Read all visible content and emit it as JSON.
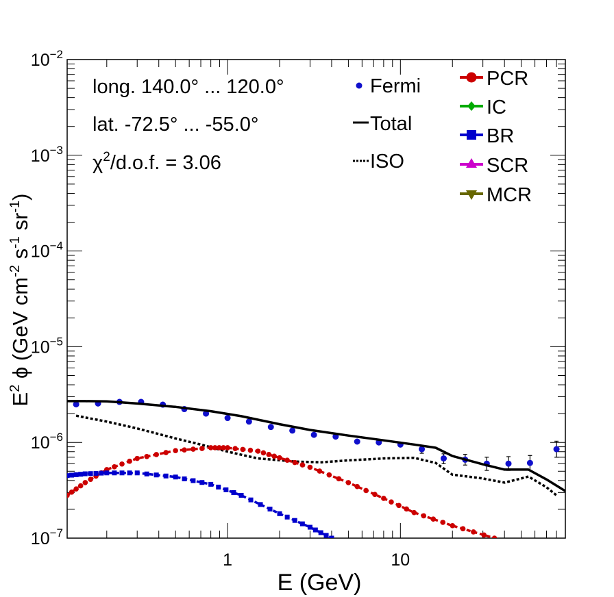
{
  "chart_data": {
    "type": "line",
    "scale": {
      "x": "log",
      "y": "log"
    },
    "xlim": [
      0.118,
      90
    ],
    "ylim": [
      1e-07,
      0.01
    ],
    "xlabel": "E (GeV)",
    "ylabel": {
      "base": "E",
      "sup": "2",
      "phi": " ϕ (GeV cm",
      "cm_exp": "-2",
      "s": " s",
      "s_exp": "-1",
      "sr": " sr",
      "sr_exp": "-1",
      "close": ")"
    },
    "x_ticks": [
      {
        "value": 1,
        "label": "1"
      },
      {
        "value": 10,
        "label": "10"
      }
    ],
    "y_ticks": [
      {
        "value": 1e-07,
        "base": "10",
        "exp": "−7"
      },
      {
        "value": 1e-06,
        "base": "10",
        "exp": "−6"
      },
      {
        "value": 1e-05,
        "base": "10",
        "exp": "−5"
      },
      {
        "value": 0.0001,
        "base": "10",
        "exp": "−4"
      },
      {
        "value": 0.001,
        "base": "10",
        "exp": "−3"
      },
      {
        "value": 0.01,
        "base": "10",
        "exp": "−2"
      }
    ],
    "annotations": {
      "longitude": "long. 140.0° ... 120.0°",
      "latitude": "lat. -72.5° ... -55.0°",
      "chi_symbol": "χ",
      "chi_exp": "2",
      "chi_rest": "/d.o.f. = 3.06"
    },
    "legend": {
      "left": [
        {
          "label": "Fermi",
          "style": "point"
        },
        {
          "label": "Total",
          "style": "solid"
        },
        {
          "label": "ISO",
          "style": "dotted"
        }
      ],
      "right": [
        {
          "label": "PCR",
          "color": "#cc0000",
          "marker": "circle"
        },
        {
          "label": "IC",
          "color": "#00aa00",
          "marker": "diamond"
        },
        {
          "label": "BR",
          "color": "#0000cc",
          "marker": "square"
        },
        {
          "label": "SCR",
          "color": "#cc00cc",
          "marker": "triangle-up"
        },
        {
          "label": "MCR",
          "color": "#666600",
          "marker": "triangle-down"
        }
      ]
    },
    "series": [
      {
        "name": "Fermi",
        "type": "points",
        "color": "#1010cc",
        "x": [
          0.133,
          0.178,
          0.237,
          0.316,
          0.422,
          0.562,
          0.75,
          1.0,
          1.33,
          1.78,
          2.37,
          3.16,
          4.22,
          5.62,
          7.5,
          10.0,
          13.3,
          17.8,
          23.7,
          31.6,
          42.2,
          56.2,
          80.0
        ],
        "y": [
          2.5e-06,
          2.55e-06,
          2.65e-06,
          2.65e-06,
          2.48e-06,
          2.23e-06,
          2e-06,
          1.8e-06,
          1.65e-06,
          1.45e-06,
          1.33e-06,
          1.2e-06,
          1.15e-06,
          1.02e-06,
          1e-06,
          9.5e-07,
          8.5e-07,
          6.8e-07,
          6.6e-07,
          6e-07,
          6e-07,
          6.1e-07,
          8.5e-07
        ],
        "err_low": [
          null,
          null,
          null,
          null,
          null,
          null,
          null,
          null,
          null,
          null,
          null,
          null,
          null,
          null,
          null,
          null,
          7.7e-07,
          6e-07,
          5.8e-07,
          5.1e-07,
          5.1e-07,
          5.1e-07,
          7e-07
        ],
        "err_high": [
          null,
          null,
          null,
          null,
          null,
          null,
          null,
          null,
          null,
          null,
          null,
          null,
          null,
          null,
          null,
          null,
          9.3e-07,
          7.6e-07,
          7.5e-07,
          7e-07,
          7.1e-07,
          7.3e-07,
          1.03e-06
        ]
      },
      {
        "name": "Total",
        "type": "line",
        "style": "solid",
        "color": "#000000",
        "x": [
          0.118,
          0.15,
          0.2,
          0.3,
          0.5,
          0.8,
          1.2,
          2.0,
          3.0,
          5.0,
          8.0,
          12.0,
          16.0,
          20.0,
          30.0,
          40.0,
          55.0,
          70.0,
          90.0
        ],
        "y": [
          2.7e-06,
          2.7e-06,
          2.68e-06,
          2.55e-06,
          2.35e-06,
          2.12e-06,
          1.88e-06,
          1.55e-06,
          1.35e-06,
          1.18e-06,
          1.05e-06,
          9.5e-07,
          8.8e-07,
          7.2e-07,
          5.9e-07,
          5.2e-07,
          5.2e-07,
          4.1e-07,
          3.1e-07
        ]
      },
      {
        "name": "ISO",
        "type": "line",
        "style": "dotted",
        "color": "#000000",
        "x": [
          0.133,
          0.2,
          0.3,
          0.5,
          0.7,
          1.0,
          1.5,
          2.5,
          3.5,
          5.0,
          8.0,
          12.0,
          16.0,
          20.0,
          30.0,
          40.0,
          50.0,
          55.0,
          70.0,
          80.0
        ],
        "y": [
          1.9e-06,
          1.65e-06,
          1.4e-06,
          1.1e-06,
          9.5e-07,
          8e-07,
          6.8e-07,
          6.3e-07,
          6.2e-07,
          6.5e-07,
          6.8e-07,
          6.9e-07,
          6.1e-07,
          4.6e-07,
          4.2e-07,
          3.8e-07,
          4.2e-07,
          4.4e-07,
          3.4e-07,
          2.8e-07
        ]
      },
      {
        "name": "PCR",
        "type": "line",
        "style": "dashed",
        "color": "#cc0000",
        "marker": "circle",
        "x": [
          0.118,
          0.15,
          0.2,
          0.3,
          0.5,
          0.8,
          1.0,
          1.5,
          2.0,
          3.0,
          5.0,
          8.0,
          12.0,
          20.0,
          35.0
        ],
        "y": [
          2.8e-07,
          3.8e-07,
          5.2e-07,
          6.8e-07,
          8.2e-07,
          8.8e-07,
          8.8e-07,
          8.1e-07,
          6.9e-07,
          5.5e-07,
          3.8e-07,
          2.6e-07,
          1.85e-07,
          1.35e-07,
          1e-07
        ]
      },
      {
        "name": "BR",
        "type": "line",
        "style": "dashed",
        "color": "#0000cc",
        "marker": "square",
        "x": [
          0.118,
          0.15,
          0.2,
          0.3,
          0.5,
          0.8,
          1.2,
          2.0,
          3.0,
          4.0
        ],
        "y": [
          4.5e-07,
          4.7e-07,
          4.8e-07,
          4.8e-07,
          4.35e-07,
          3.65e-07,
          2.8e-07,
          1.8e-07,
          1.3e-07,
          1e-07
        ]
      }
    ]
  }
}
